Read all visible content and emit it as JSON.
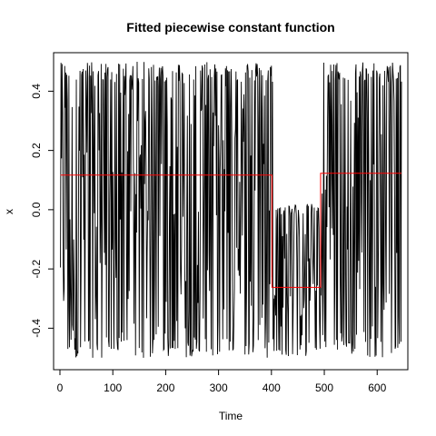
{
  "chart_data": {
    "type": "line",
    "title": "Fitted piecewise constant function",
    "xlabel": "Time",
    "ylabel": "x",
    "xlim": [
      -12,
      658
    ],
    "ylim": [
      -0.54,
      0.53
    ],
    "x_ticks": [
      0,
      100,
      200,
      300,
      400,
      500,
      600
    ],
    "x_tick_labels": [
      "0",
      "100",
      "200",
      "300",
      "400",
      "500",
      "600"
    ],
    "y_ticks": [
      -0.4,
      -0.2,
      0.0,
      0.2,
      0.4
    ],
    "y_tick_labels": [
      "-0.4",
      "-0.2",
      "0.0",
      "0.2",
      "0.4"
    ],
    "grid": false,
    "series": [
      {
        "color": "#000000",
        "segments": [
          {
            "x_start": 1,
            "x_end": 404,
            "min": -0.5,
            "max": 0.5
          },
          {
            "x_start": 405,
            "x_end": 495,
            "min": -0.5,
            "max": 0.02
          },
          {
            "x_start": 496,
            "x_end": 646,
            "min": -0.5,
            "max": 0.5
          }
        ]
      },
      {
        "color": "#ff0000",
        "x": [
          1,
          401,
          401,
          493,
          493,
          646
        ],
        "y": [
          0.117,
          0.117,
          -0.262,
          -0.262,
          0.123,
          0.123
        ]
      }
    ]
  }
}
